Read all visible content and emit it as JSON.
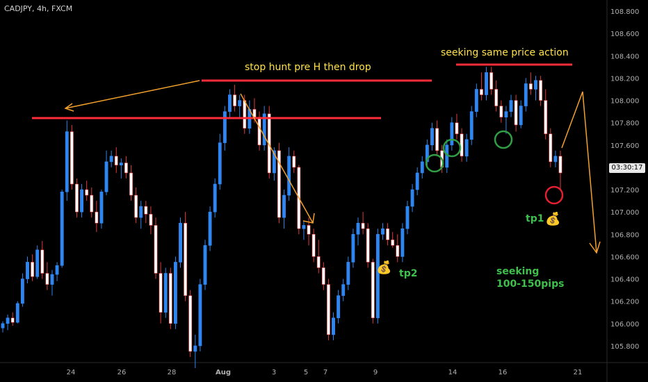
{
  "chart_data": {
    "type": "candlestick",
    "symbol_label": "CADJPY, 4h, FXCM",
    "price_label": "03:30:17",
    "y_ticks": [
      "108.800",
      "108.600",
      "108.400",
      "108.200",
      "108.000",
      "107.800",
      "107.600",
      "107.400",
      "107.200",
      "107.000",
      "106.800",
      "106.600",
      "106.400",
      "106.200",
      "106.000",
      "105.800"
    ],
    "x_ticks": [
      "24",
      "26",
      "28",
      "Aug",
      "3",
      "5",
      "7",
      "9",
      "14",
      "16",
      "21"
    ],
    "ylim": [
      105.65,
      108.9
    ],
    "candles": [
      [
        105.96,
        106.02,
        105.92,
        106.0
      ],
      [
        106.0,
        106.08,
        105.94,
        106.05
      ],
      [
        106.05,
        106.1,
        105.98,
        106.01
      ],
      [
        106.01,
        106.2,
        106.0,
        106.18
      ],
      [
        106.18,
        106.45,
        106.15,
        106.4
      ],
      [
        106.4,
        106.6,
        106.36,
        106.55
      ],
      [
        106.55,
        106.62,
        106.38,
        106.42
      ],
      [
        106.42,
        106.7,
        106.4,
        106.66
      ],
      [
        106.66,
        106.74,
        106.4,
        106.45
      ],
      [
        106.45,
        106.55,
        106.3,
        106.35
      ],
      [
        106.35,
        106.48,
        106.25,
        106.44
      ],
      [
        106.44,
        106.55,
        106.38,
        106.52
      ],
      [
        106.52,
        107.2,
        106.5,
        107.18
      ],
      [
        107.18,
        107.82,
        107.1,
        107.72
      ],
      [
        107.72,
        107.78,
        107.2,
        107.25
      ],
      [
        107.25,
        107.3,
        106.95,
        107.0
      ],
      [
        107.0,
        107.25,
        106.95,
        107.2
      ],
      [
        107.2,
        107.28,
        107.1,
        107.15
      ],
      [
        107.15,
        107.22,
        106.95,
        107.0
      ],
      [
        107.0,
        107.1,
        106.82,
        106.9
      ],
      [
        106.9,
        107.2,
        106.85,
        107.18
      ],
      [
        107.18,
        107.55,
        107.15,
        107.45
      ],
      [
        107.45,
        107.55,
        107.4,
        107.5
      ],
      [
        107.5,
        107.58,
        107.35,
        107.42
      ],
      [
        107.42,
        107.48,
        107.3,
        107.44
      ],
      [
        107.44,
        107.5,
        107.3,
        107.35
      ],
      [
        107.35,
        107.42,
        107.1,
        107.15
      ],
      [
        107.15,
        107.22,
        106.9,
        106.95
      ],
      [
        106.95,
        107.1,
        106.85,
        107.05
      ],
      [
        107.05,
        107.1,
        106.9,
        106.98
      ],
      [
        106.98,
        107.05,
        106.8,
        106.88
      ],
      [
        106.88,
        106.95,
        106.4,
        106.45
      ],
      [
        106.45,
        106.55,
        106.0,
        106.1
      ],
      [
        106.1,
        106.5,
        106.05,
        106.45
      ],
      [
        106.45,
        106.5,
        105.95,
        106.0
      ],
      [
        106.0,
        106.6,
        105.95,
        106.55
      ],
      [
        106.55,
        106.95,
        106.5,
        106.9
      ],
      [
        106.9,
        107.0,
        106.2,
        106.25
      ],
      [
        106.25,
        106.3,
        105.7,
        105.75
      ],
      [
        105.75,
        105.9,
        105.6,
        105.8
      ],
      [
        105.8,
        106.4,
        105.75,
        106.35
      ],
      [
        106.35,
        106.75,
        106.3,
        106.7
      ],
      [
        106.7,
        107.05,
        106.65,
        107.0
      ],
      [
        107.0,
        107.3,
        106.95,
        107.25
      ],
      [
        107.25,
        107.7,
        107.2,
        107.62
      ],
      [
        107.62,
        107.95,
        107.55,
        107.9
      ],
      [
        107.9,
        108.1,
        107.85,
        108.05
      ],
      [
        108.05,
        108.14,
        107.9,
        107.95
      ],
      [
        107.95,
        108.05,
        107.85,
        108.0
      ],
      [
        108.0,
        108.05,
        107.7,
        107.75
      ],
      [
        107.75,
        108.0,
        107.7,
        107.92
      ],
      [
        107.92,
        108.02,
        107.8,
        107.85
      ],
      [
        107.85,
        107.9,
        107.55,
        107.6
      ],
      [
        107.6,
        107.95,
        107.55,
        107.88
      ],
      [
        107.88,
        107.95,
        107.3,
        107.35
      ],
      [
        107.35,
        107.58,
        107.28,
        107.55
      ],
      [
        107.55,
        107.62,
        106.9,
        106.95
      ],
      [
        106.95,
        107.2,
        106.85,
        107.15
      ],
      [
        107.15,
        107.58,
        107.1,
        107.5
      ],
      [
        107.5,
        107.55,
        107.35,
        107.4
      ],
      [
        107.4,
        107.42,
        106.8,
        106.85
      ],
      [
        106.85,
        106.92,
        106.75,
        106.88
      ],
      [
        106.88,
        106.95,
        106.7,
        106.8
      ],
      [
        106.8,
        106.85,
        106.55,
        106.6
      ],
      [
        106.6,
        106.75,
        106.45,
        106.5
      ],
      [
        106.5,
        106.55,
        106.3,
        106.35
      ],
      [
        106.35,
        106.4,
        105.85,
        105.9
      ],
      [
        105.9,
        106.1,
        105.85,
        106.05
      ],
      [
        106.05,
        106.3,
        106.0,
        106.25
      ],
      [
        106.25,
        106.4,
        106.2,
        106.35
      ],
      [
        106.35,
        106.6,
        106.3,
        106.55
      ],
      [
        106.55,
        106.85,
        106.5,
        106.8
      ],
      [
        106.8,
        106.95,
        106.7,
        106.9
      ],
      [
        106.9,
        107.0,
        106.8,
        106.85
      ],
      [
        106.85,
        106.9,
        106.5,
        106.55
      ],
      [
        106.55,
        106.58,
        106.0,
        106.05
      ],
      [
        106.05,
        106.85,
        106.0,
        106.8
      ],
      [
        106.8,
        106.9,
        106.75,
        106.85
      ],
      [
        106.85,
        106.9,
        106.7,
        106.75
      ],
      [
        106.75,
        106.82,
        106.68,
        106.7
      ],
      [
        106.7,
        106.8,
        106.55,
        106.6
      ],
      [
        106.6,
        106.9,
        106.55,
        106.85
      ],
      [
        106.85,
        107.1,
        106.8,
        107.05
      ],
      [
        107.05,
        107.25,
        107.0,
        107.2
      ],
      [
        107.2,
        107.4,
        107.15,
        107.35
      ],
      [
        107.35,
        107.5,
        107.3,
        107.45
      ],
      [
        107.45,
        107.65,
        107.4,
        107.6
      ],
      [
        107.6,
        107.8,
        107.55,
        107.75
      ],
      [
        107.75,
        107.82,
        107.5,
        107.55
      ],
      [
        107.55,
        107.6,
        107.35,
        107.4
      ],
      [
        107.4,
        107.65,
        107.35,
        107.6
      ],
      [
        107.6,
        107.85,
        107.55,
        107.8
      ],
      [
        107.8,
        107.88,
        107.65,
        107.7
      ],
      [
        107.7,
        107.75,
        107.45,
        107.5
      ],
      [
        107.5,
        107.7,
        107.45,
        107.65
      ],
      [
        107.65,
        107.95,
        107.6,
        107.9
      ],
      [
        107.9,
        108.15,
        107.85,
        108.1
      ],
      [
        108.1,
        108.25,
        108.0,
        108.05
      ],
      [
        108.05,
        108.3,
        108.0,
        108.25
      ],
      [
        108.25,
        108.3,
        108.05,
        108.1
      ],
      [
        108.1,
        108.18,
        107.9,
        107.95
      ],
      [
        107.95,
        108.0,
        107.8,
        107.85
      ],
      [
        107.85,
        107.95,
        107.7,
        107.9
      ],
      [
        107.9,
        108.05,
        107.85,
        108.0
      ],
      [
        108.0,
        108.05,
        107.72,
        107.78
      ],
      [
        107.78,
        108.0,
        107.75,
        107.95
      ],
      [
        107.95,
        108.2,
        107.9,
        108.15
      ],
      [
        108.15,
        108.25,
        108.05,
        108.1
      ],
      [
        108.1,
        108.22,
        108.0,
        108.18
      ],
      [
        108.18,
        108.22,
        107.95,
        108.0
      ],
      [
        108.0,
        108.1,
        107.65,
        107.7
      ],
      [
        107.7,
        107.75,
        107.4,
        107.45
      ],
      [
        107.45,
        107.55,
        107.4,
        107.5
      ],
      [
        107.5,
        107.55,
        107.2,
        107.35
      ]
    ]
  },
  "annotations": {
    "stop_hunt": "stop hunt pre H then drop",
    "same_pa": "seeking same price action",
    "seeking_line1": "seeking",
    "seeking_line2": "100-150pips",
    "tp1": "tp1",
    "tp2": "tp2",
    "bag": "💰"
  },
  "colors": {
    "bull": "#2f86f0",
    "bear": "#ffffff",
    "bear_edge": "#e23a3a",
    "level_line": "#ff2d3a",
    "arrow": "#f2a02c",
    "circle_green": "#2f9e44",
    "circle_red": "#e3202f"
  }
}
